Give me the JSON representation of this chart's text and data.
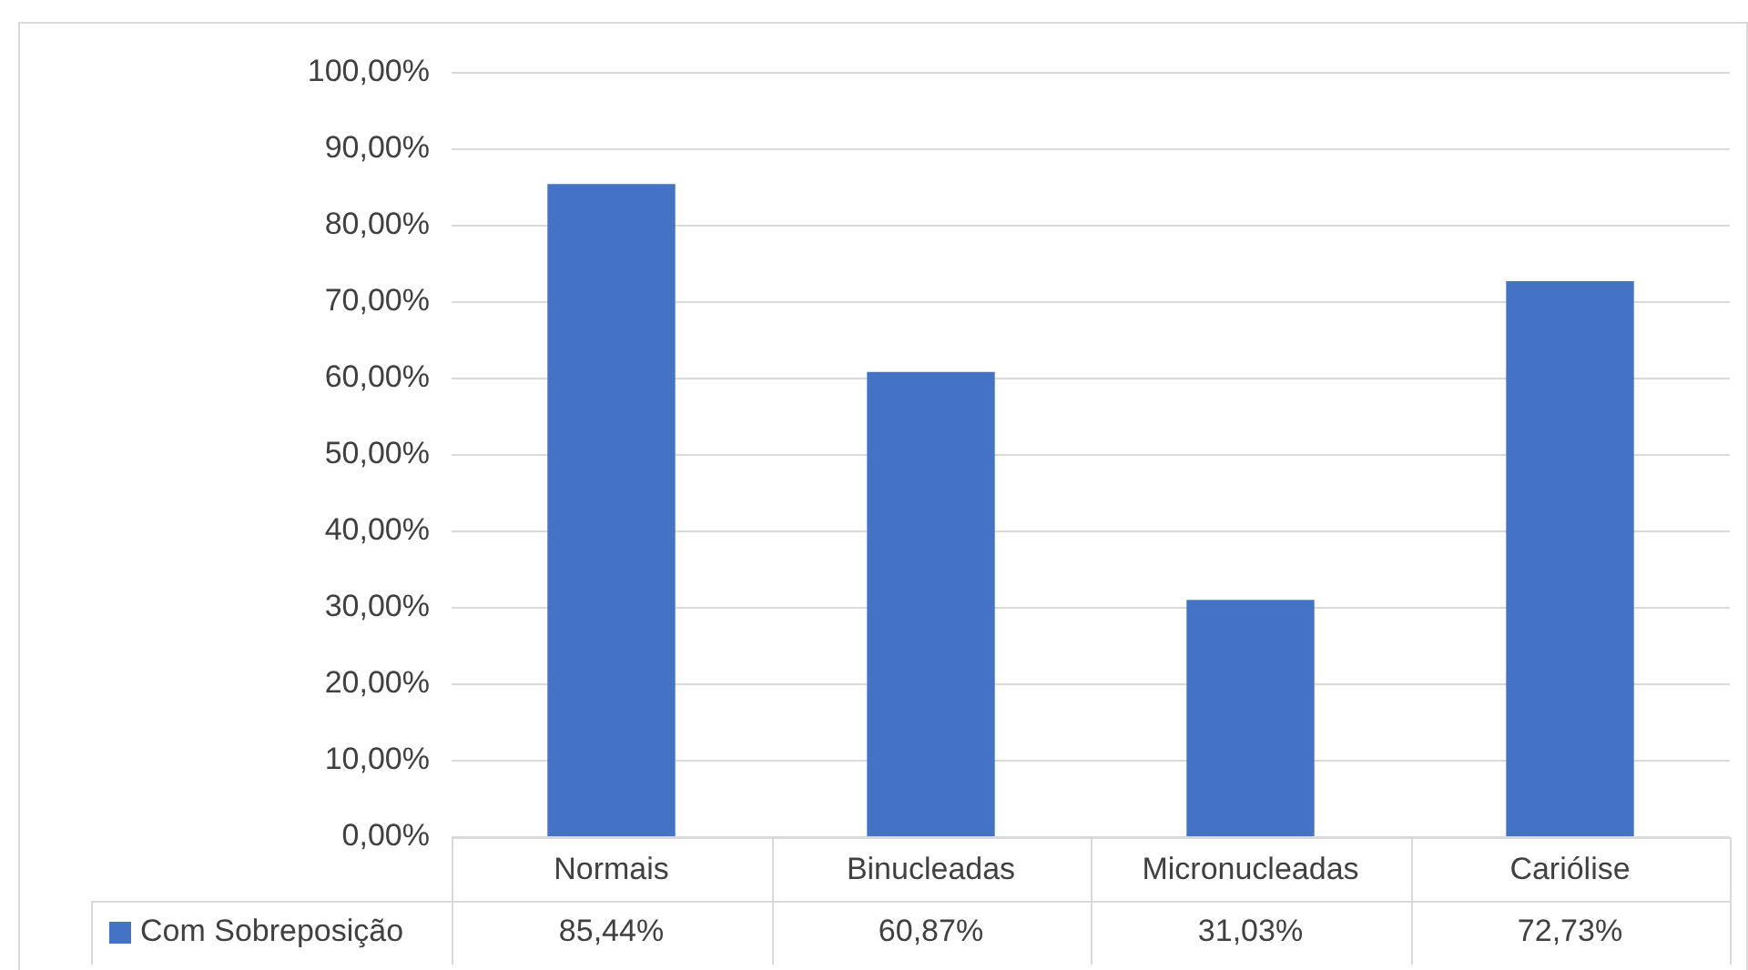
{
  "chart_data": {
    "type": "bar",
    "categories": [
      "Normais",
      "Binucleadas",
      "Micronucleadas",
      "Cariólise"
    ],
    "series": [
      {
        "name": "Com Sobreposição",
        "color": "#4472c4",
        "values": [
          85.44,
          60.87,
          31.03,
          72.73
        ],
        "value_labels": [
          "85,44%",
          "60,87%",
          "31,03%",
          "72,73%"
        ]
      }
    ],
    "ylim": [
      0,
      100
    ],
    "yticks": [
      {
        "value": 0,
        "label": "0,00%"
      },
      {
        "value": 10,
        "label": "10,00%"
      },
      {
        "value": 20,
        "label": "20,00%"
      },
      {
        "value": 30,
        "label": "30,00%"
      },
      {
        "value": 40,
        "label": "40,00%"
      },
      {
        "value": 50,
        "label": "50,00%"
      },
      {
        "value": 60,
        "label": "60,00%"
      },
      {
        "value": 70,
        "label": "70,00%"
      },
      {
        "value": 80,
        "label": "80,00%"
      },
      {
        "value": 90,
        "label": "90,00%"
      },
      {
        "value": 100,
        "label": "100,00%"
      }
    ],
    "grid": "y",
    "legend": "bottom"
  }
}
